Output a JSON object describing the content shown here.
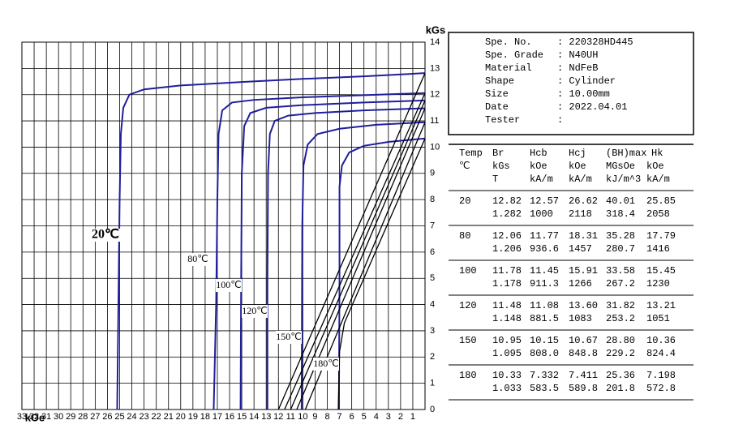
{
  "chart_data": {
    "type": "line",
    "x_label": "kOe",
    "y_label": "kGs",
    "xlim": [
      33,
      0
    ],
    "ylim": [
      0,
      14
    ],
    "xticks": [
      33,
      32,
      31,
      30,
      29,
      28,
      27,
      26,
      25,
      24,
      23,
      22,
      21,
      20,
      19,
      18,
      17,
      16,
      15,
      14,
      13,
      12,
      11,
      10,
      9,
      8,
      7,
      6,
      5,
      4,
      3,
      2,
      1
    ],
    "yticks": [
      0,
      1,
      2,
      3,
      4,
      5,
      6,
      7,
      8,
      9,
      10,
      11,
      12,
      13,
      14
    ],
    "grid": true,
    "series": [
      {
        "name": "20℃",
        "color": "#1f1f9c",
        "x": [
          0,
          5,
          10,
          15,
          20,
          23,
          24.2,
          24.7,
          24.9,
          25.0,
          25.1,
          25.2
        ],
        "values": [
          12.82,
          12.7,
          12.6,
          12.48,
          12.35,
          12.2,
          12.0,
          11.5,
          10.5,
          8,
          4,
          0
        ]
      },
      {
        "name": "80℃",
        "color": "#1f1f9c",
        "x": [
          0,
          5,
          10,
          14,
          15.8,
          16.6,
          16.9,
          17.0,
          17.1,
          17.3
        ],
        "values": [
          12.06,
          11.98,
          11.9,
          11.8,
          11.7,
          11.4,
          10.5,
          8,
          4,
          0
        ]
      },
      {
        "name": "100℃",
        "color": "#1f1f9c",
        "x": [
          0,
          5,
          10,
          13,
          14.3,
          14.8,
          15.0,
          15.05,
          15.1
        ],
        "values": [
          11.78,
          11.7,
          11.6,
          11.5,
          11.3,
          10.8,
          9,
          5,
          0
        ]
      },
      {
        "name": "120℃",
        "color": "#1f1f9c",
        "x": [
          0,
          5,
          9,
          11.2,
          12.3,
          12.7,
          12.85,
          12.9,
          12.9
        ],
        "values": [
          11.48,
          11.4,
          11.3,
          11.2,
          11.0,
          10.5,
          9,
          5,
          0
        ]
      },
      {
        "name": "150℃",
        "color": "#1f1f9c",
        "x": [
          0,
          4,
          7,
          8.8,
          9.6,
          9.95,
          10.05,
          10.1
        ],
        "values": [
          10.95,
          10.85,
          10.7,
          10.5,
          10.1,
          9.3,
          7,
          0
        ]
      },
      {
        "name": "180℃",
        "color": "#1f1f9c",
        "x": [
          0,
          3,
          5,
          6.2,
          6.8,
          7.0,
          7.0,
          7.05
        ],
        "values": [
          10.33,
          10.2,
          10.05,
          9.8,
          9.3,
          8.5,
          5,
          0
        ]
      },
      {
        "color": "#000000",
        "x": [
          12.0,
          0
        ],
        "values": [
          0,
          12.82
        ]
      },
      {
        "color": "#000000",
        "x": [
          11.5,
          0
        ],
        "values": [
          0,
          12.06
        ]
      },
      {
        "color": "#000000",
        "x": [
          11.0,
          0
        ],
        "values": [
          0,
          11.78
        ]
      },
      {
        "color": "#000000",
        "x": [
          10.5,
          0
        ],
        "values": [
          0,
          11.48
        ]
      },
      {
        "color": "#000000",
        "x": [
          9.8,
          0
        ],
        "values": [
          0,
          10.95
        ]
      },
      {
        "color": "#000000",
        "x": [
          7.1,
          7.0,
          6.6,
          0
        ],
        "values": [
          0,
          2.2,
          3.3,
          10.33
        ]
      }
    ]
  },
  "info": [
    {
      "label": "Spe. No.",
      "value": ": 220328HD445"
    },
    {
      "label": "Spe. Grade",
      "value": ": N40UH"
    },
    {
      "label": "Material",
      "value": ": NdFeB"
    },
    {
      "label": "Shape",
      "value": ": Cylinder"
    },
    {
      "label": "Size",
      "value": ": 10.00mm"
    },
    {
      "label": "Date",
      "value": ": 2022.04.01"
    },
    {
      "label": "Tester",
      "value": ":"
    }
  ],
  "table": {
    "header": [
      [
        "Temp",
        "Br",
        "Hcb",
        "Hcj",
        "(BH)max",
        "Hk"
      ],
      [
        "℃",
        "kGs",
        "kOe",
        "kOe",
        "MGsOe",
        "kOe"
      ],
      [
        null,
        "T",
        "kA/m",
        "kA/m",
        "kJ/m^3",
        "kA/m"
      ]
    ],
    "rows": [
      {
        "temp": "20",
        "lines": [
          [
            "12.82",
            "12.57",
            "26.62",
            "40.01",
            "25.85"
          ],
          [
            "1.282",
            "1000",
            "2118",
            "318.4",
            "2058"
          ]
        ]
      },
      {
        "temp": "80",
        "lines": [
          [
            "12.06",
            "11.77",
            "18.31",
            "35.28",
            "17.79"
          ],
          [
            "1.206",
            "936.6",
            "1457",
            "280.7",
            "1416"
          ]
        ]
      },
      {
        "temp": "100",
        "lines": [
          [
            "11.78",
            "11.45",
            "15.91",
            "33.58",
            "15.45"
          ],
          [
            "1.178",
            "911.3",
            "1266",
            "267.2",
            "1230"
          ]
        ]
      },
      {
        "temp": "120",
        "lines": [
          [
            "11.48",
            "11.08",
            "13.60",
            "31.82",
            "13.21"
          ],
          [
            "1.148",
            "881.5",
            "1083",
            "253.2",
            "1051"
          ]
        ]
      },
      {
        "temp": "150",
        "lines": [
          [
            "10.95",
            "10.15",
            "10.67",
            "28.80",
            "10.36"
          ],
          [
            "1.095",
            "808.0",
            "848.8",
            "229.2",
            "824.4"
          ]
        ]
      },
      {
        "temp": "180",
        "lines": [
          [
            "10.33",
            "7.332",
            "7.411",
            "25.36",
            "7.198"
          ],
          [
            "1.033",
            "583.5",
            "589.8",
            "201.8",
            "572.8"
          ]
        ]
      }
    ]
  }
}
